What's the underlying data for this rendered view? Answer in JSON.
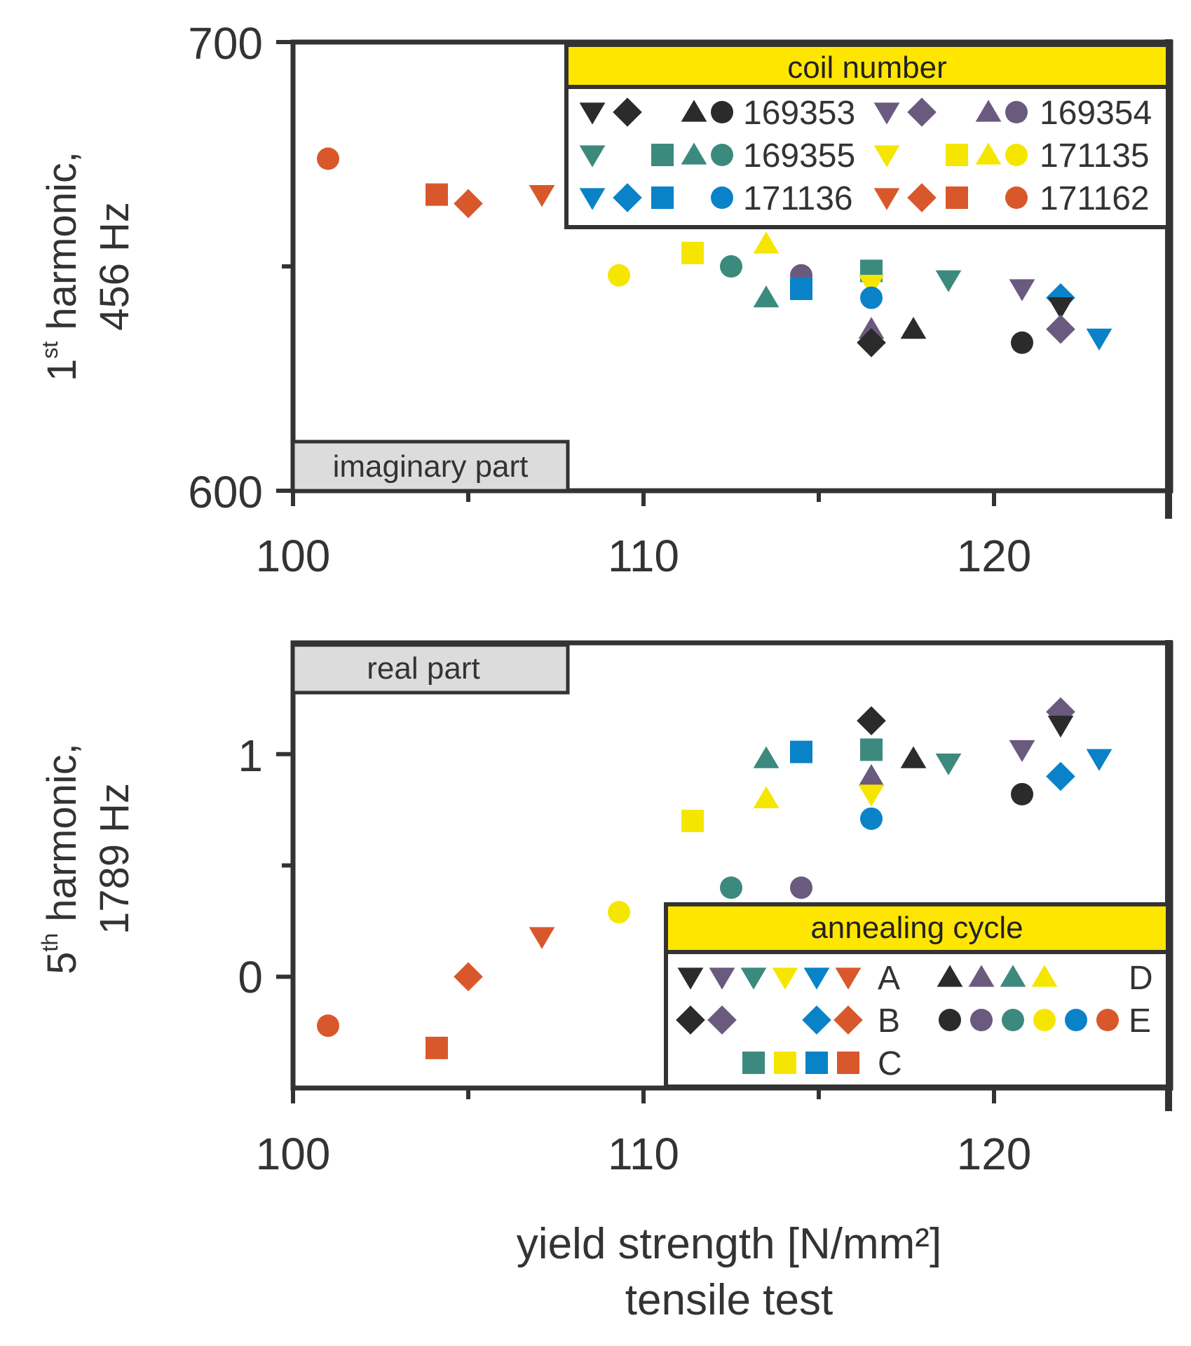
{
  "colors": {
    "black": "#2b2b2b",
    "purple": "#6a5a7e",
    "teal": "#3c8a7e",
    "yellow": "#f5e600",
    "blue": "#0a82c8",
    "orange": "#d9582b",
    "axis": "#333333",
    "legend_header": "#ffe600",
    "tag_fill": "#dcdcdc"
  },
  "x_axis": {
    "title_line1": "yield strength [N/mm²]",
    "title_line2": "tensile test"
  },
  "legend_coil": {
    "title": "coil number",
    "entries": [
      {
        "label": "169353",
        "color": "black",
        "symbols": [
          "tri_down",
          "diamond",
          "",
          "tri_up",
          "circle"
        ]
      },
      {
        "label": "169354",
        "color": "purple",
        "symbols": [
          "tri_down",
          "diamond",
          "",
          "tri_up",
          "circle"
        ]
      },
      {
        "label": "169355",
        "color": "teal",
        "symbols": [
          "tri_down",
          "",
          "square",
          "tri_up",
          "circle"
        ]
      },
      {
        "label": "171135",
        "color": "yellow",
        "symbols": [
          "tri_down",
          "",
          "square",
          "tri_up",
          "circle"
        ]
      },
      {
        "label": "171136",
        "color": "blue",
        "symbols": [
          "tri_down",
          "diamond",
          "square",
          "",
          "circle"
        ]
      },
      {
        "label": "171162",
        "color": "orange",
        "symbols": [
          "tri_down",
          "diamond",
          "square",
          "",
          "circle"
        ]
      }
    ]
  },
  "legend_anneal": {
    "title": "annealing cycle",
    "entries": [
      {
        "label": "A",
        "symbol": "tri_down",
        "colors": [
          "black",
          "purple",
          "teal",
          "yellow",
          "blue",
          "orange"
        ]
      },
      {
        "label": "D",
        "symbol": "tri_up",
        "colors": [
          "black",
          "purple",
          "teal",
          "yellow"
        ]
      },
      {
        "label": "B",
        "symbol": "diamond",
        "colors": [
          "black",
          "purple",
          "",
          "",
          "blue",
          "orange"
        ]
      },
      {
        "label": "E",
        "symbol": "circle",
        "colors": [
          "black",
          "purple",
          "teal",
          "yellow",
          "blue",
          "orange"
        ]
      },
      {
        "label": "C",
        "symbol": "square",
        "colors": [
          "teal",
          "yellow",
          "blue",
          "orange"
        ]
      }
    ]
  },
  "chart_data": [
    {
      "type": "scatter",
      "title": "",
      "tag": "imaginary part",
      "ylabel_line1_main": "1",
      "ylabel_line1_sup": "st",
      "ylabel_line1_rest": " harmonic,",
      "ylabel_line2": "456 Hz",
      "xlim": [
        100,
        125
      ],
      "ylim": [
        600,
        700
      ],
      "x_ticks": [
        100,
        110,
        120
      ],
      "x_tick_labels": [
        "100",
        "110",
        "120"
      ],
      "y_ticks": [
        600,
        700
      ],
      "y_tick_labels": [
        "600",
        "700"
      ],
      "y_minor_ticks": [
        650
      ],
      "points": [
        {
          "x": 101.0,
          "y": 674,
          "color": "orange",
          "shape": "circle"
        },
        {
          "x": 104.1,
          "y": 666,
          "color": "orange",
          "shape": "square"
        },
        {
          "x": 105.0,
          "y": 664,
          "color": "orange",
          "shape": "diamond"
        },
        {
          "x": 107.1,
          "y": 666,
          "color": "orange",
          "shape": "tri_down"
        },
        {
          "x": 109.3,
          "y": 648,
          "color": "yellow",
          "shape": "circle"
        },
        {
          "x": 111.4,
          "y": 653,
          "color": "yellow",
          "shape": "square"
        },
        {
          "x": 112.5,
          "y": 650,
          "color": "teal",
          "shape": "circle"
        },
        {
          "x": 113.5,
          "y": 643,
          "color": "teal",
          "shape": "tri_up"
        },
        {
          "x": 113.5,
          "y": 655,
          "color": "yellow",
          "shape": "tri_up"
        },
        {
          "x": 114.5,
          "y": 648,
          "color": "purple",
          "shape": "circle"
        },
        {
          "x": 114.5,
          "y": 645,
          "color": "blue",
          "shape": "square"
        },
        {
          "x": 116.5,
          "y": 649,
          "color": "teal",
          "shape": "square"
        },
        {
          "x": 116.5,
          "y": 646,
          "color": "yellow",
          "shape": "tri_down"
        },
        {
          "x": 116.5,
          "y": 643,
          "color": "blue",
          "shape": "circle"
        },
        {
          "x": 116.5,
          "y": 636,
          "color": "purple",
          "shape": "tri_up"
        },
        {
          "x": 116.5,
          "y": 633,
          "color": "black",
          "shape": "diamond"
        },
        {
          "x": 117.7,
          "y": 636,
          "color": "black",
          "shape": "tri_up"
        },
        {
          "x": 118.7,
          "y": 647,
          "color": "teal",
          "shape": "tri_down"
        },
        {
          "x": 120.8,
          "y": 645,
          "color": "purple",
          "shape": "tri_down"
        },
        {
          "x": 120.8,
          "y": 633,
          "color": "black",
          "shape": "circle"
        },
        {
          "x": 121.9,
          "y": 643,
          "color": "blue",
          "shape": "diamond"
        },
        {
          "x": 121.9,
          "y": 641,
          "color": "black",
          "shape": "tri_down"
        },
        {
          "x": 121.9,
          "y": 636,
          "color": "purple",
          "shape": "diamond"
        },
        {
          "x": 123.0,
          "y": 634,
          "color": "blue",
          "shape": "tri_down"
        }
      ]
    },
    {
      "type": "scatter",
      "title": "",
      "tag": "real part",
      "ylabel_line1_main": "5",
      "ylabel_line1_sup": "th",
      "ylabel_line1_rest": " harmonic,",
      "ylabel_line2": "1789 Hz",
      "xlim": [
        100,
        125
      ],
      "ylim": [
        -0.5,
        1.5
      ],
      "x_ticks": [
        100,
        110,
        120
      ],
      "x_tick_labels": [
        "100",
        "110",
        "120"
      ],
      "y_ticks": [
        0,
        1
      ],
      "y_tick_labels": [
        "0",
        "1"
      ],
      "y_minor_ticks": [
        0.5
      ],
      "points": [
        {
          "x": 101.0,
          "y": -0.22,
          "color": "orange",
          "shape": "circle"
        },
        {
          "x": 104.1,
          "y": -0.32,
          "color": "orange",
          "shape": "square"
        },
        {
          "x": 105.0,
          "y": 0.0,
          "color": "orange",
          "shape": "diamond"
        },
        {
          "x": 107.1,
          "y": 0.18,
          "color": "orange",
          "shape": "tri_down"
        },
        {
          "x": 109.3,
          "y": 0.29,
          "color": "yellow",
          "shape": "circle"
        },
        {
          "x": 111.4,
          "y": 0.7,
          "color": "yellow",
          "shape": "square"
        },
        {
          "x": 112.5,
          "y": 0.4,
          "color": "teal",
          "shape": "circle"
        },
        {
          "x": 113.5,
          "y": 0.98,
          "color": "teal",
          "shape": "tri_up"
        },
        {
          "x": 113.5,
          "y": 0.8,
          "color": "yellow",
          "shape": "tri_up"
        },
        {
          "x": 114.5,
          "y": 0.4,
          "color": "purple",
          "shape": "circle"
        },
        {
          "x": 114.5,
          "y": 1.01,
          "color": "blue",
          "shape": "square"
        },
        {
          "x": 116.5,
          "y": 1.15,
          "color": "black",
          "shape": "diamond"
        },
        {
          "x": 116.5,
          "y": 1.02,
          "color": "teal",
          "shape": "square"
        },
        {
          "x": 116.5,
          "y": 0.9,
          "color": "purple",
          "shape": "tri_up"
        },
        {
          "x": 116.5,
          "y": 0.82,
          "color": "yellow",
          "shape": "tri_down"
        },
        {
          "x": 116.5,
          "y": 0.71,
          "color": "blue",
          "shape": "circle"
        },
        {
          "x": 117.7,
          "y": 0.98,
          "color": "black",
          "shape": "tri_up"
        },
        {
          "x": 118.7,
          "y": 0.96,
          "color": "teal",
          "shape": "tri_down"
        },
        {
          "x": 120.8,
          "y": 1.02,
          "color": "purple",
          "shape": "tri_down"
        },
        {
          "x": 120.8,
          "y": 0.82,
          "color": "black",
          "shape": "circle"
        },
        {
          "x": 121.9,
          "y": 1.19,
          "color": "purple",
          "shape": "diamond"
        },
        {
          "x": 121.9,
          "y": 1.13,
          "color": "black",
          "shape": "tri_down"
        },
        {
          "x": 121.9,
          "y": 0.9,
          "color": "blue",
          "shape": "diamond"
        },
        {
          "x": 123.0,
          "y": 0.98,
          "color": "blue",
          "shape": "tri_down"
        }
      ]
    }
  ]
}
